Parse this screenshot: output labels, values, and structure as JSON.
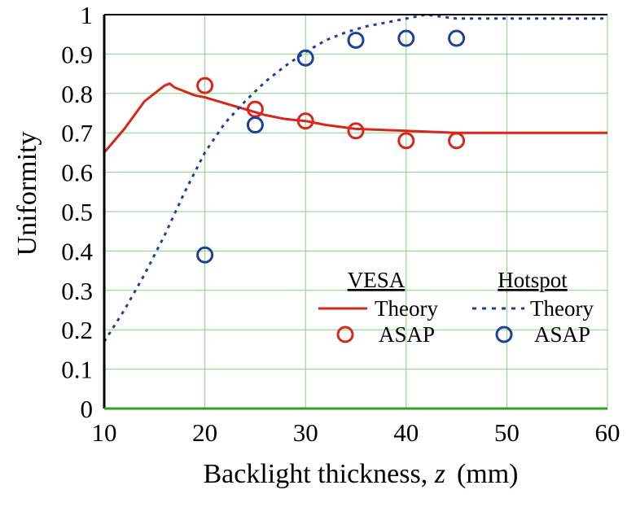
{
  "chart_data": {
    "type": "line",
    "xlabel_main": "Backlight thickness, ",
    "xlabel_var": "z",
    "xlabel_unit": "(mm)",
    "ylabel": "Uniformity",
    "xlim": [
      10,
      60
    ],
    "ylim": [
      0,
      1
    ],
    "grid": true,
    "x_ticks": [
      "10",
      "20",
      "30",
      "40",
      "50",
      "60"
    ],
    "y_ticks": [
      "0",
      "0.1",
      "0.2",
      "0.3",
      "0.4",
      "0.5",
      "0.6",
      "0.7",
      "0.8",
      "0.9",
      "1"
    ],
    "legend": {
      "group_vesa": "VESA",
      "group_hotspot": "Hotspot",
      "theory_label": "Theory",
      "asap_label": "ASAP",
      "placement": "center-right"
    },
    "colors": {
      "vesa": "#d9261c",
      "hotspot": "#1f3f99",
      "grid": "#7fd67f"
    },
    "series": [
      {
        "group": "VESA",
        "label": "Theory",
        "style": "solid-line",
        "x": [
          10,
          11,
          12,
          13,
          14,
          15,
          16,
          16.5,
          17,
          18,
          19,
          20,
          22,
          24,
          26,
          28,
          30,
          32,
          35,
          40,
          45,
          50,
          55,
          60
        ],
        "y": [
          0.65,
          0.68,
          0.71,
          0.745,
          0.78,
          0.8,
          0.82,
          0.825,
          0.815,
          0.805,
          0.795,
          0.79,
          0.775,
          0.76,
          0.745,
          0.735,
          0.73,
          0.72,
          0.71,
          0.705,
          0.7,
          0.7,
          0.7,
          0.7
        ]
      },
      {
        "group": "VESA",
        "label": "ASAP",
        "style": "circle-marker",
        "x": [
          20,
          25,
          30,
          35,
          40,
          45
        ],
        "y": [
          0.82,
          0.76,
          0.73,
          0.705,
          0.68,
          0.68
        ]
      },
      {
        "group": "Hotspot",
        "label": "Theory",
        "style": "dotted-line",
        "x": [
          10,
          12,
          14,
          16,
          18,
          20,
          22,
          24,
          26,
          28,
          30,
          32,
          34,
          36,
          38,
          40,
          42,
          45,
          50,
          55,
          60
        ],
        "y": [
          0.17,
          0.25,
          0.34,
          0.44,
          0.55,
          0.65,
          0.725,
          0.78,
          0.83,
          0.87,
          0.905,
          0.935,
          0.955,
          0.97,
          0.98,
          0.99,
          1.0,
          0.99,
          0.99,
          0.99,
          0.99
        ]
      },
      {
        "group": "Hotspot",
        "label": "ASAP",
        "style": "circle-marker",
        "x": [
          20,
          25,
          30,
          35,
          40,
          45
        ],
        "y": [
          0.39,
          0.72,
          0.89,
          0.935,
          0.94,
          0.94
        ]
      }
    ]
  }
}
